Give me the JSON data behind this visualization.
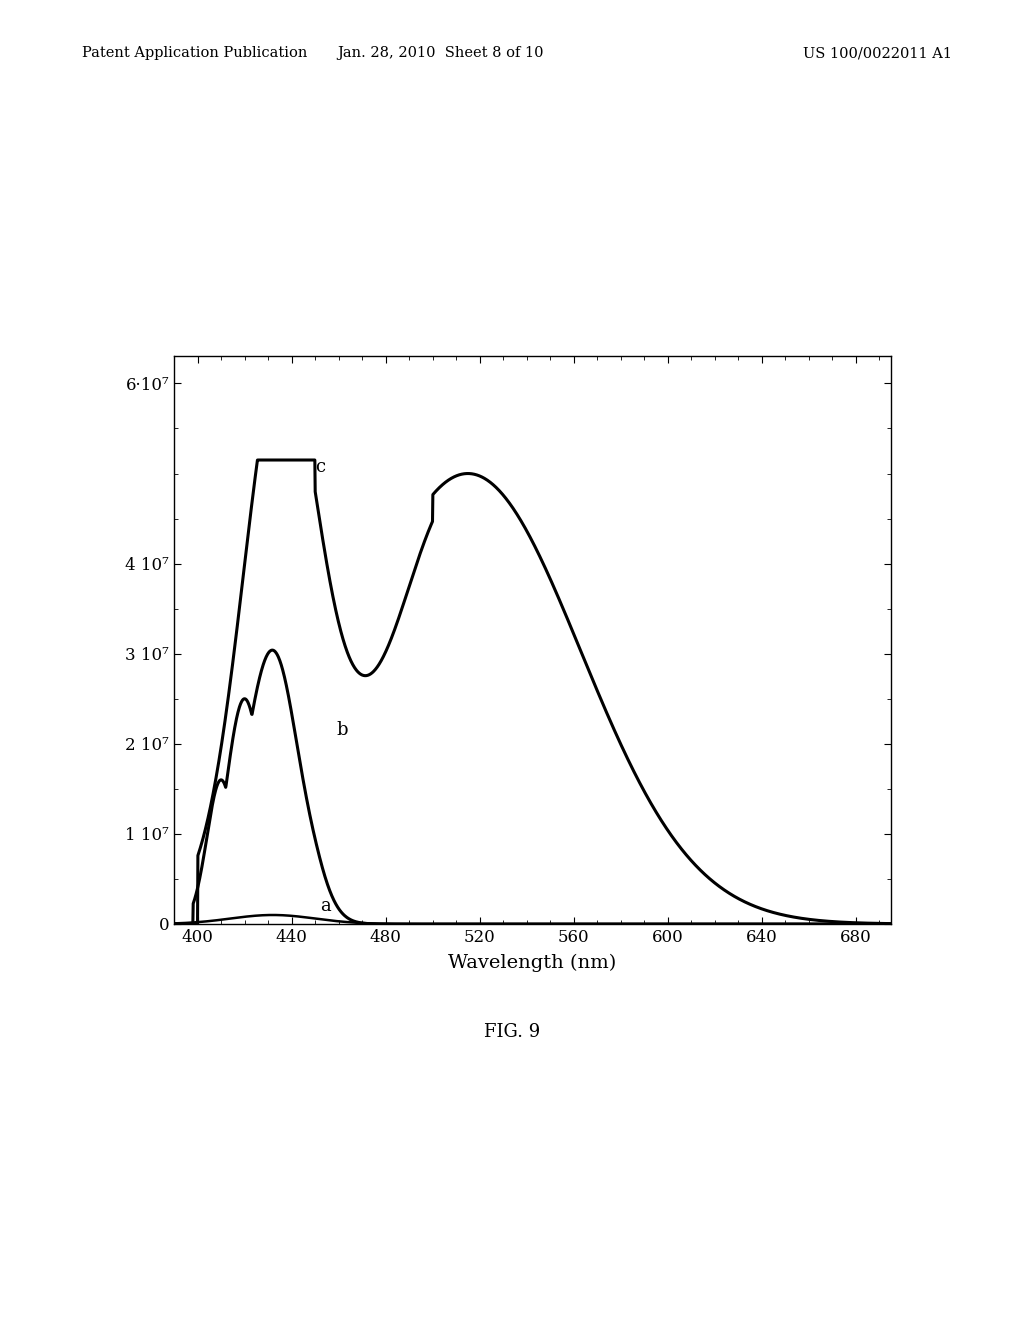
{
  "title": "",
  "xlabel": "Wavelength (nm)",
  "ylabel": "",
  "xlim": [
    390,
    695
  ],
  "ylim": [
    0,
    63000000.0
  ],
  "yticks": [
    0,
    10000000.0,
    20000000.0,
    30000000.0,
    40000000.0,
    60000000.0
  ],
  "ytick_labels": [
    "0",
    "1 10⁷",
    "2 10⁷",
    "3 10⁷",
    "4 10⁷",
    "6·10⁷"
  ],
  "xticks": [
    400,
    440,
    480,
    520,
    560,
    600,
    640,
    680
  ],
  "header_left": "Patent Application Publication",
  "header_center": "Jan. 28, 2010  Sheet 8 of 10",
  "header_right": "US 100/0022011 A1",
  "figure_label": "FIG. 9",
  "line_color": "#000000",
  "background": "#ffffff"
}
